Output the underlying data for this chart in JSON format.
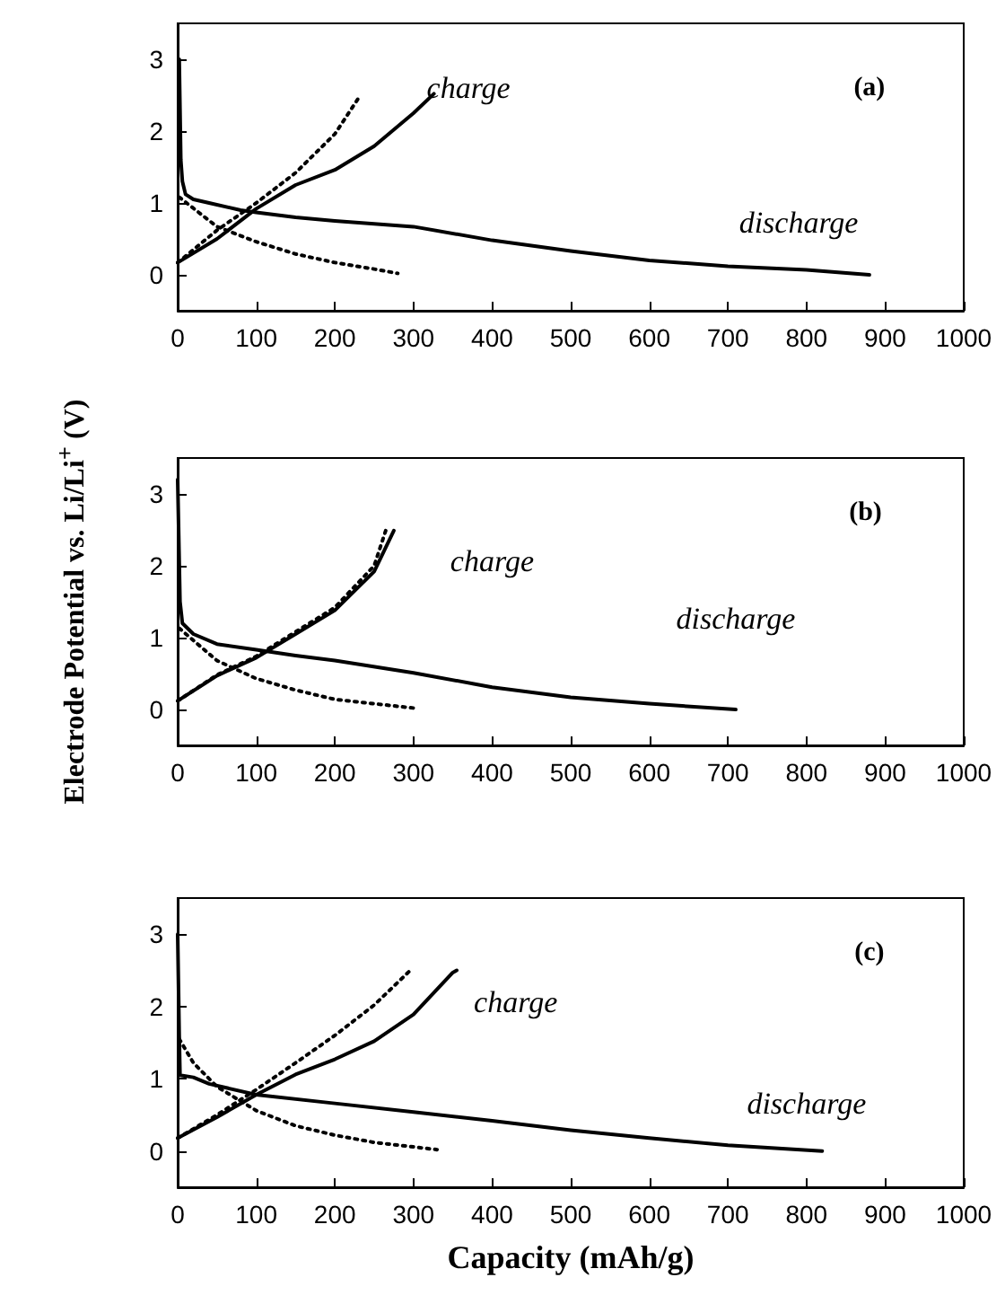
{
  "chart_data": [
    {
      "type": "line",
      "xlim": [
        0,
        1000
      ],
      "xticks": [
        0,
        100,
        200,
        300,
        400,
        500,
        600,
        700,
        800,
        900,
        1000
      ],
      "ylim": [
        -0.5,
        3.5
      ],
      "yticks": [
        0,
        1,
        2,
        3
      ],
      "marker": "none",
      "annotations": [
        "(a)",
        "charge",
        "discharge"
      ],
      "series": [
        {
          "color": "#000000",
          "line_style": "solid",
          "x": [
            2,
            4,
            6,
            10,
            20,
            40,
            80,
            100,
            150,
            200,
            300,
            400,
            500,
            600,
            700,
            800,
            880
          ],
          "values": [
            3.0,
            1.6,
            1.3,
            1.12,
            1.05,
            1.0,
            0.9,
            0.87,
            0.8,
            0.75,
            0.67,
            0.48,
            0.33,
            0.2,
            0.12,
            0.07,
            0.0
          ]
        },
        {
          "color": "#000000",
          "line_style": "solid",
          "x": [
            0,
            50,
            100,
            150,
            200,
            250,
            300,
            326
          ],
          "values": [
            0.17,
            0.5,
            0.92,
            1.25,
            1.46,
            1.79,
            2.25,
            2.52
          ]
        },
        {
          "color": "#000000",
          "line_style": "dotted",
          "x": [
            2,
            50,
            100,
            150,
            200,
            250,
            280
          ],
          "values": [
            1.08,
            0.67,
            0.46,
            0.29,
            0.17,
            0.08,
            0.02
          ]
        },
        {
          "color": "#000000",
          "line_style": "dotted",
          "x": [
            0,
            50,
            100,
            150,
            200,
            230
          ],
          "values": [
            0.17,
            0.62,
            1.0,
            1.42,
            1.96,
            2.46
          ]
        }
      ]
    },
    {
      "type": "line",
      "ylabel": "Electrode Potential vs. Li/Li$^{+}$ (V)",
      "xlim": [
        0,
        1000
      ],
      "xticks": [
        0,
        100,
        200,
        300,
        400,
        500,
        600,
        700,
        800,
        900,
        1000
      ],
      "ylim": [
        -0.5,
        3.5
      ],
      "yticks": [
        0,
        1,
        2,
        3
      ],
      "marker": "none",
      "annotations": [
        "(b)",
        "charge",
        "discharge"
      ],
      "series": [
        {
          "color": "#000000",
          "line_style": "solid",
          "x": [
            0,
            3,
            6,
            20,
            50,
            100,
            150,
            200,
            300,
            400,
            500,
            600,
            710
          ],
          "values": [
            3.2,
            1.5,
            1.2,
            1.05,
            0.91,
            0.83,
            0.75,
            0.68,
            0.51,
            0.31,
            0.17,
            0.08,
            0.0
          ]
        },
        {
          "color": "#000000",
          "line_style": "solid",
          "x": [
            0,
            50,
            100,
            150,
            200,
            250,
            275
          ],
          "values": [
            0.12,
            0.47,
            0.72,
            1.05,
            1.38,
            1.92,
            2.49
          ]
        },
        {
          "color": "#000000",
          "line_style": "dotted",
          "x": [
            2,
            50,
            100,
            150,
            200,
            250,
            300
          ],
          "values": [
            1.13,
            0.68,
            0.43,
            0.27,
            0.14,
            0.08,
            0.02
          ]
        },
        {
          "color": "#000000",
          "line_style": "dotted",
          "x": [
            0,
            50,
            100,
            150,
            200,
            250,
            265
          ],
          "values": [
            0.12,
            0.48,
            0.74,
            1.08,
            1.42,
            2.0,
            2.5
          ]
        }
      ]
    },
    {
      "type": "line",
      "xlabel": "Capacity (mAh/g)",
      "xlim": [
        0,
        1000
      ],
      "xticks": [
        0,
        100,
        200,
        300,
        400,
        500,
        600,
        700,
        800,
        900,
        1000
      ],
      "ylim": [
        -0.5,
        3.5
      ],
      "yticks": [
        0,
        1,
        2,
        3
      ],
      "marker": "none",
      "annotations": [
        "(c)",
        "charge",
        "discharge"
      ],
      "series": [
        {
          "color": "#000000",
          "line_style": "solid",
          "x": [
            0,
            2,
            3,
            20,
            40,
            100,
            200,
            300,
            400,
            500,
            600,
            700,
            820
          ],
          "values": [
            3.0,
            1.6,
            1.05,
            1.02,
            0.93,
            0.78,
            0.66,
            0.54,
            0.42,
            0.29,
            0.18,
            0.08,
            0.0
          ]
        },
        {
          "color": "#000000",
          "line_style": "solid",
          "x": [
            0,
            50,
            100,
            150,
            200,
            250,
            300,
            350,
            355
          ],
          "values": [
            0.18,
            0.47,
            0.78,
            1.06,
            1.27,
            1.52,
            1.89,
            2.47,
            2.5
          ]
        },
        {
          "color": "#000000",
          "line_style": "dotted",
          "x": [
            2,
            20,
            50,
            100,
            150,
            200,
            250,
            330
          ],
          "values": [
            1.55,
            1.22,
            0.89,
            0.56,
            0.35,
            0.22,
            0.12,
            0.02
          ]
        },
        {
          "color": "#000000",
          "line_style": "dotted",
          "x": [
            0,
            50,
            100,
            150,
            200,
            250,
            295
          ],
          "values": [
            0.18,
            0.5,
            0.85,
            1.22,
            1.6,
            2.02,
            2.49
          ]
        }
      ]
    }
  ]
}
